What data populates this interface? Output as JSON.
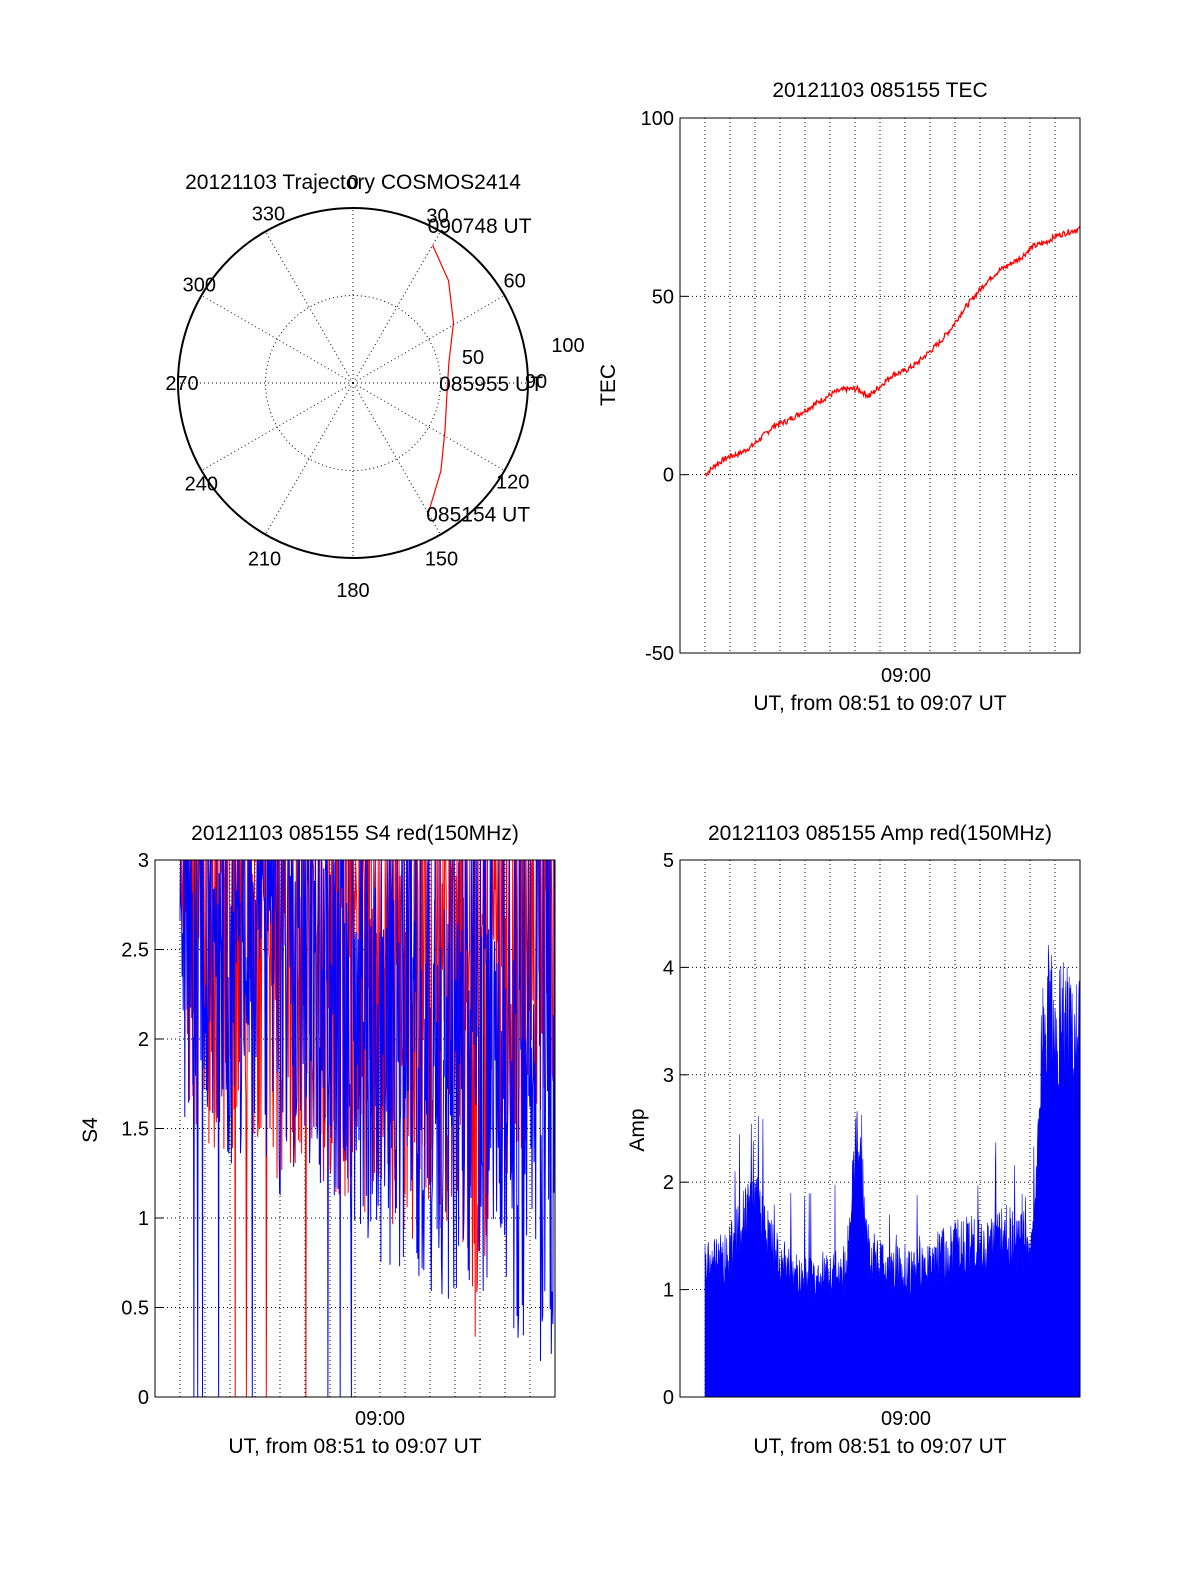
{
  "chart_data": [
    {
      "type": "polar-trajectory",
      "title": "20121103 Trajectory COSMOS2414",
      "azimuth_labels": [
        "0",
        "30",
        "60",
        "90",
        "120",
        "150",
        "180",
        "210",
        "240",
        "270",
        "300",
        "330"
      ],
      "radial_labels": [
        "50",
        "100"
      ],
      "rlim": [
        0,
        100
      ],
      "grid": true,
      "series_color": "#ff0000",
      "trajectory": [
        {
          "az": 150,
          "r": 86
        },
        {
          "az": 135,
          "r": 71
        },
        {
          "az": 117,
          "r": 59
        },
        {
          "az": 95,
          "r": 54
        },
        {
          "az": 78,
          "r": 56
        },
        {
          "az": 59,
          "r": 67
        },
        {
          "az": 43,
          "r": 80
        },
        {
          "az": 30,
          "r": 91
        }
      ],
      "annotations": [
        {
          "text": "090748 UT",
          "az": 30,
          "r": 91
        },
        {
          "text": "085955 UT",
          "az": 95,
          "r": 54
        },
        {
          "text": "085154 UT",
          "az": 150,
          "r": 86
        }
      ]
    },
    {
      "type": "line",
      "title": "20121103 085155 TEC",
      "ylabel": "TEC",
      "xlabel": "UT, from 08:51 to 09:07 UT",
      "xtick_label": "09:00",
      "ylim": [
        -50,
        100
      ],
      "yticks": [
        "100",
        "50",
        "0",
        "-50"
      ],
      "xlim_minutes": [
        0,
        16
      ],
      "series_color": "#ff0000",
      "x": [
        0,
        0.5,
        1,
        1.5,
        2,
        2.5,
        3,
        3.5,
        4,
        4.5,
        5,
        5.5,
        6,
        6.5,
        7,
        7.5,
        8,
        8.5,
        9,
        9.5,
        10,
        10.5,
        11,
        11.5,
        12,
        12.5,
        13,
        13.5,
        14,
        14.5,
        15,
        15.5,
        16
      ],
      "y": [
        0,
        3,
        5,
        6,
        8,
        11,
        14,
        15,
        17,
        19,
        21,
        23,
        24,
        24,
        22,
        25,
        28,
        29,
        31,
        34,
        37,
        41,
        46,
        50,
        54,
        57,
        59,
        61,
        64,
        65,
        67,
        68,
        69
      ]
    },
    {
      "type": "line",
      "title": "20121103 085155 S4 red(150MHz)",
      "ylabel": "S4",
      "xlabel": "UT, from 08:51 to 09:07 UT",
      "xtick_label": "09:00",
      "ylim": [
        0,
        3
      ],
      "yticks": [
        "3",
        "2.5",
        "2",
        "1.5",
        "1",
        "0.5",
        "0"
      ],
      "xlim_minutes": [
        0,
        16
      ],
      "series": [
        {
          "color": "#ff0000",
          "x": [
            0,
            1,
            2,
            3,
            4,
            5,
            6,
            7,
            8,
            9,
            10,
            11,
            12,
            12.5,
            13,
            14,
            15,
            16
          ],
          "y": [
            2.8,
            2.3,
            2.5,
            2.4,
            2.3,
            2.4,
            2.3,
            2.2,
            2.1,
            2.0,
            1.9,
            2.0,
            2.0,
            1.3,
            1.7,
            2.3,
            2.5,
            2.6
          ]
        },
        {
          "color": "#0000ff",
          "x": [
            0,
            1,
            2,
            3,
            4,
            5,
            6,
            7,
            8,
            9,
            10,
            11,
            12,
            13,
            14,
            15,
            16
          ],
          "y": [
            2.7,
            2.5,
            2.4,
            2.3,
            2.2,
            2.3,
            2.2,
            2.0,
            1.9,
            1.7,
            1.8,
            1.6,
            1.7,
            1.6,
            1.5,
            1.2,
            1.3
          ]
        }
      ]
    },
    {
      "type": "bar",
      "title": "20121103 085155 Amp red(150MHz)",
      "ylabel": "Amp",
      "xlabel": "UT, from 08:51 to 09:07 UT",
      "xtick_label": "09:00",
      "ylim": [
        0,
        5
      ],
      "yticks": [
        "5",
        "4",
        "3",
        "2",
        "1",
        "0"
      ],
      "xlim_minutes": [
        0,
        16
      ],
      "series_color": "#0000ff",
      "x": [
        0,
        1,
        2,
        3,
        4,
        5,
        6,
        6.5,
        7,
        8,
        9,
        10,
        11,
        12,
        13,
        14,
        14.5,
        15,
        16
      ],
      "y": [
        1.1,
        1.2,
        1.7,
        1.2,
        1.0,
        1.0,
        1.1,
        2.2,
        1.2,
        1.1,
        1.1,
        1.2,
        1.3,
        1.3,
        1.4,
        1.3,
        3.4,
        3.2,
        3.0
      ]
    }
  ]
}
